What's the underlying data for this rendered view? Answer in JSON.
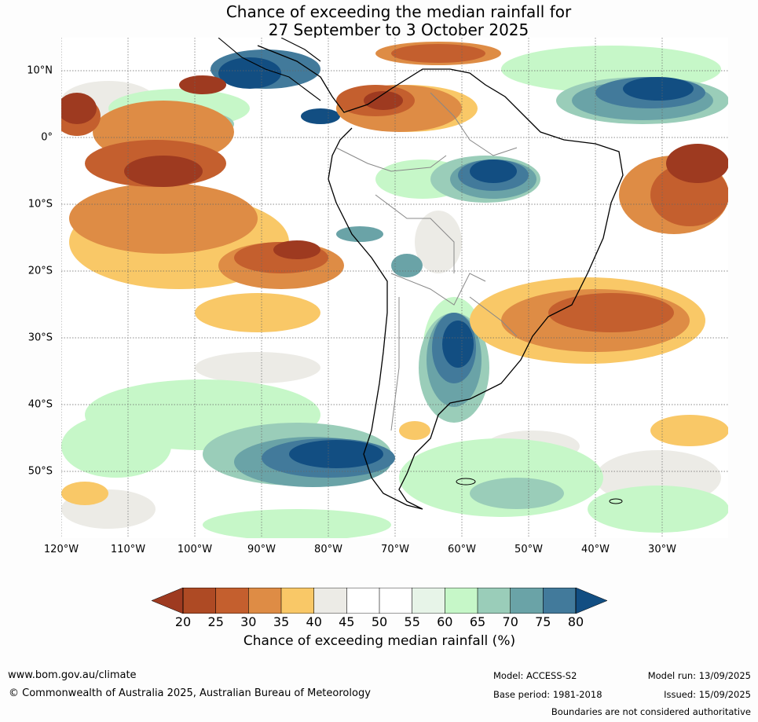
{
  "title": {
    "line1": "Chance of exceeding the median rainfall for",
    "line2": "27 September to 3 October 2025"
  },
  "map": {
    "lat_labels": [
      "10°N",
      "0°",
      "10°S",
      "20°S",
      "30°S",
      "40°S",
      "50°S"
    ],
    "lon_labels": [
      "120°W",
      "110°W",
      "100°W",
      "90°W",
      "80°W",
      "70°W",
      "60°W",
      "50°W",
      "40°W",
      "30°W"
    ],
    "background_color": "#ffffff",
    "region_colors": {
      "very_dry": "#9e3a20",
      "dry": "#c45f2e",
      "moderately_dry": "#de8c45",
      "slightly_dry": "#f9c867",
      "neutral": "#ecebe6",
      "slightly_wet": "#c6f7c8",
      "moderately_wet": "#9acdb9",
      "wet": "#6aa3a7",
      "very_wet": "#427a9b",
      "extremely_wet": "#124e82"
    }
  },
  "colorbar": {
    "ticks": [
      "20",
      "25",
      "30",
      "35",
      "40",
      "45",
      "50",
      "55",
      "60",
      "65",
      "70",
      "75",
      "80"
    ],
    "colors": [
      "#9e3a20",
      "#ae4a24",
      "#c45f2e",
      "#de8c45",
      "#f9c867",
      "#ecebe6",
      "#ffffff",
      "#ffffff",
      "#e7f4e8",
      "#c6f7c8",
      "#9acdb9",
      "#6aa3a7",
      "#427a9b",
      "#124e82"
    ],
    "label": "Chance of exceeding median rainfall (%)"
  },
  "footer": {
    "website": "www.bom.gov.au/climate",
    "copyright": "© Commonwealth of Australia 2025, Australian Bureau of Meteorology",
    "model": "Model: ACCESS-S2",
    "base_period": "Base period: 1981-2018",
    "model_run": "Model run: 13/09/2025",
    "issued": "Issued: 15/09/2025",
    "disclaimer": "Boundaries are not considered authoritative"
  }
}
